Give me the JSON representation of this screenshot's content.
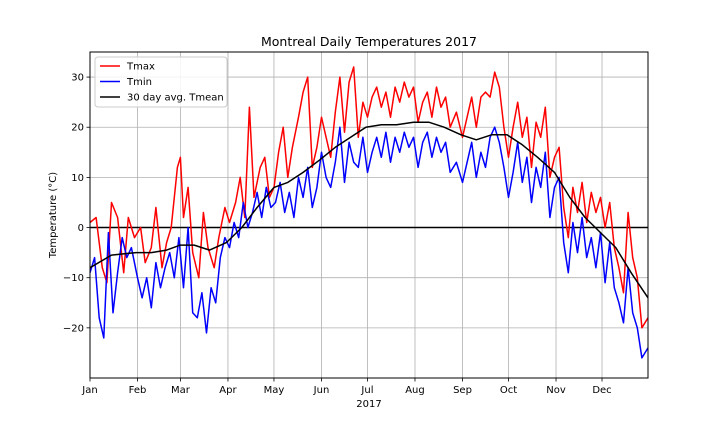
{
  "chart_data": {
    "type": "line",
    "title": "Montreal Daily Temperatures 2017",
    "xlabel": "2017",
    "ylabel": "Temperature (°C)",
    "xlim": [
      "2017-01-01",
      "2017-12-31"
    ],
    "ylim": [
      -30,
      35
    ],
    "yticks": [
      -20,
      -10,
      0,
      10,
      20,
      30
    ],
    "xticks": [
      {
        "date": "2017-01-01",
        "label": "Jan"
      },
      {
        "date": "2017-02-01",
        "label": "Feb"
      },
      {
        "date": "2017-03-01",
        "label": "Mar"
      },
      {
        "date": "2017-04-01",
        "label": "Apr"
      },
      {
        "date": "2017-05-01",
        "label": "May"
      },
      {
        "date": "2017-06-01",
        "label": "Jun"
      },
      {
        "date": "2017-07-01",
        "label": "Jul"
      },
      {
        "date": "2017-08-01",
        "label": "Aug"
      },
      {
        "date": "2017-09-01",
        "label": "Sep"
      },
      {
        "date": "2017-10-01",
        "label": "Oct"
      },
      {
        "date": "2017-11-01",
        "label": "Nov"
      },
      {
        "date": "2017-12-01",
        "label": "Dec"
      }
    ],
    "grid": true,
    "legend_position": "upper-left",
    "zero_line": {
      "y": 0,
      "color": "#000000"
    },
    "series": [
      {
        "name": "Tmax",
        "color": "#ff0000",
        "points": [
          [
            "2017-01-01",
            1
          ],
          [
            "2017-01-05",
            2
          ],
          [
            "2017-01-09",
            -8
          ],
          [
            "2017-01-12",
            -11
          ],
          [
            "2017-01-15",
            5
          ],
          [
            "2017-01-19",
            2
          ],
          [
            "2017-01-23",
            -9
          ],
          [
            "2017-01-26",
            2
          ],
          [
            "2017-01-30",
            -2
          ],
          [
            "2017-02-03",
            0
          ],
          [
            "2017-02-06",
            -7
          ],
          [
            "2017-02-10",
            -4
          ],
          [
            "2017-02-13",
            4
          ],
          [
            "2017-02-17",
            -8
          ],
          [
            "2017-02-20",
            -3
          ],
          [
            "2017-02-23",
            0
          ],
          [
            "2017-02-27",
            12
          ],
          [
            "2017-03-01",
            14
          ],
          [
            "2017-03-03",
            2
          ],
          [
            "2017-03-06",
            8
          ],
          [
            "2017-03-09",
            -5
          ],
          [
            "2017-03-13",
            -10
          ],
          [
            "2017-03-16",
            3
          ],
          [
            "2017-03-19",
            -4
          ],
          [
            "2017-03-23",
            -8
          ],
          [
            "2017-03-26",
            -2
          ],
          [
            "2017-03-30",
            4
          ],
          [
            "2017-04-02",
            1
          ],
          [
            "2017-04-06",
            5
          ],
          [
            "2017-04-09",
            10
          ],
          [
            "2017-04-12",
            2
          ],
          [
            "2017-04-15",
            24
          ],
          [
            "2017-04-18",
            6
          ],
          [
            "2017-04-22",
            12
          ],
          [
            "2017-04-25",
            14
          ],
          [
            "2017-04-28",
            6
          ],
          [
            "2017-05-01",
            8
          ],
          [
            "2017-05-04",
            15
          ],
          [
            "2017-05-07",
            20
          ],
          [
            "2017-05-10",
            10
          ],
          [
            "2017-05-13",
            16
          ],
          [
            "2017-05-17",
            22
          ],
          [
            "2017-05-20",
            27
          ],
          [
            "2017-05-23",
            30
          ],
          [
            "2017-05-26",
            12
          ],
          [
            "2017-05-29",
            16
          ],
          [
            "2017-06-01",
            22
          ],
          [
            "2017-06-04",
            18
          ],
          [
            "2017-06-07",
            14
          ],
          [
            "2017-06-10",
            23
          ],
          [
            "2017-06-13",
            30
          ],
          [
            "2017-06-16",
            19
          ],
          [
            "2017-06-19",
            29
          ],
          [
            "2017-06-22",
            32
          ],
          [
            "2017-06-25",
            18
          ],
          [
            "2017-06-28",
            25
          ],
          [
            "2017-07-01",
            22
          ],
          [
            "2017-07-04",
            26
          ],
          [
            "2017-07-07",
            28
          ],
          [
            "2017-07-10",
            24
          ],
          [
            "2017-07-13",
            27
          ],
          [
            "2017-07-16",
            22
          ],
          [
            "2017-07-19",
            28
          ],
          [
            "2017-07-22",
            25
          ],
          [
            "2017-07-25",
            29
          ],
          [
            "2017-07-28",
            26
          ],
          [
            "2017-07-31",
            28
          ],
          [
            "2017-08-03",
            21
          ],
          [
            "2017-08-06",
            25
          ],
          [
            "2017-08-09",
            27
          ],
          [
            "2017-08-12",
            22
          ],
          [
            "2017-08-15",
            28
          ],
          [
            "2017-08-18",
            24
          ],
          [
            "2017-08-21",
            26
          ],
          [
            "2017-08-24",
            20
          ],
          [
            "2017-08-28",
            23
          ],
          [
            "2017-09-01",
            18
          ],
          [
            "2017-09-04",
            22
          ],
          [
            "2017-09-07",
            26
          ],
          [
            "2017-09-10",
            20
          ],
          [
            "2017-09-13",
            26
          ],
          [
            "2017-09-16",
            27
          ],
          [
            "2017-09-19",
            26
          ],
          [
            "2017-09-22",
            31
          ],
          [
            "2017-09-25",
            28
          ],
          [
            "2017-09-28",
            20
          ],
          [
            "2017-10-01",
            14
          ],
          [
            "2017-10-04",
            20
          ],
          [
            "2017-10-07",
            25
          ],
          [
            "2017-10-10",
            18
          ],
          [
            "2017-10-13",
            22
          ],
          [
            "2017-10-16",
            12
          ],
          [
            "2017-10-19",
            21
          ],
          [
            "2017-10-22",
            18
          ],
          [
            "2017-10-25",
            24
          ],
          [
            "2017-10-28",
            10
          ],
          [
            "2017-10-31",
            14
          ],
          [
            "2017-11-03",
            16
          ],
          [
            "2017-11-06",
            4
          ],
          [
            "2017-11-09",
            -2
          ],
          [
            "2017-11-12",
            8
          ],
          [
            "2017-11-15",
            3
          ],
          [
            "2017-11-18",
            9
          ],
          [
            "2017-11-21",
            1
          ],
          [
            "2017-11-24",
            7
          ],
          [
            "2017-11-27",
            3
          ],
          [
            "2017-11-30",
            6
          ],
          [
            "2017-12-03",
            0
          ],
          [
            "2017-12-06",
            5
          ],
          [
            "2017-12-09",
            -4
          ],
          [
            "2017-12-12",
            -8
          ],
          [
            "2017-12-15",
            -13
          ],
          [
            "2017-12-18",
            3
          ],
          [
            "2017-12-21",
            -6
          ],
          [
            "2017-12-24",
            -10
          ],
          [
            "2017-12-27",
            -20
          ],
          [
            "2017-12-31",
            -18
          ]
        ]
      },
      {
        "name": "Tmin",
        "color": "#0000ff",
        "points": [
          [
            "2017-01-01",
            -9
          ],
          [
            "2017-01-04",
            -6
          ],
          [
            "2017-01-07",
            -18
          ],
          [
            "2017-01-10",
            -22
          ],
          [
            "2017-01-13",
            -1
          ],
          [
            "2017-01-16",
            -17
          ],
          [
            "2017-01-19",
            -9
          ],
          [
            "2017-01-22",
            -2
          ],
          [
            "2017-01-25",
            -6
          ],
          [
            "2017-01-28",
            -4
          ],
          [
            "2017-02-01",
            -10
          ],
          [
            "2017-02-04",
            -14
          ],
          [
            "2017-02-07",
            -10
          ],
          [
            "2017-02-10",
            -16
          ],
          [
            "2017-02-13",
            -7
          ],
          [
            "2017-02-16",
            -12
          ],
          [
            "2017-02-19",
            -8
          ],
          [
            "2017-02-22",
            -5
          ],
          [
            "2017-02-25",
            -10
          ],
          [
            "2017-02-28",
            -2
          ],
          [
            "2017-03-03",
            -12
          ],
          [
            "2017-03-06",
            0
          ],
          [
            "2017-03-09",
            -17
          ],
          [
            "2017-03-12",
            -18
          ],
          [
            "2017-03-15",
            -13
          ],
          [
            "2017-03-18",
            -21
          ],
          [
            "2017-03-21",
            -12
          ],
          [
            "2017-03-24",
            -15
          ],
          [
            "2017-03-27",
            -6
          ],
          [
            "2017-03-30",
            -2
          ],
          [
            "2017-04-02",
            -4
          ],
          [
            "2017-04-05",
            1
          ],
          [
            "2017-04-08",
            -2
          ],
          [
            "2017-04-11",
            5
          ],
          [
            "2017-04-14",
            0
          ],
          [
            "2017-04-17",
            3
          ],
          [
            "2017-04-20",
            7
          ],
          [
            "2017-04-23",
            2
          ],
          [
            "2017-04-26",
            8
          ],
          [
            "2017-04-29",
            4
          ],
          [
            "2017-05-02",
            5
          ],
          [
            "2017-05-05",
            9
          ],
          [
            "2017-05-08",
            3
          ],
          [
            "2017-05-11",
            7
          ],
          [
            "2017-05-14",
            2
          ],
          [
            "2017-05-17",
            10
          ],
          [
            "2017-05-20",
            6
          ],
          [
            "2017-05-23",
            12
          ],
          [
            "2017-05-26",
            4
          ],
          [
            "2017-05-29",
            8
          ],
          [
            "2017-06-01",
            15
          ],
          [
            "2017-06-04",
            10
          ],
          [
            "2017-06-07",
            8
          ],
          [
            "2017-06-10",
            13
          ],
          [
            "2017-06-13",
            20
          ],
          [
            "2017-06-16",
            9
          ],
          [
            "2017-06-19",
            17
          ],
          [
            "2017-06-22",
            13
          ],
          [
            "2017-06-25",
            12
          ],
          [
            "2017-06-28",
            18
          ],
          [
            "2017-07-01",
            11
          ],
          [
            "2017-07-04",
            15
          ],
          [
            "2017-07-07",
            18
          ],
          [
            "2017-07-10",
            14
          ],
          [
            "2017-07-13",
            19
          ],
          [
            "2017-07-16",
            13
          ],
          [
            "2017-07-19",
            18
          ],
          [
            "2017-07-22",
            15
          ],
          [
            "2017-07-25",
            19
          ],
          [
            "2017-07-28",
            16
          ],
          [
            "2017-07-31",
            18
          ],
          [
            "2017-08-03",
            12
          ],
          [
            "2017-08-06",
            17
          ],
          [
            "2017-08-09",
            19
          ],
          [
            "2017-08-12",
            14
          ],
          [
            "2017-08-15",
            18
          ],
          [
            "2017-08-18",
            15
          ],
          [
            "2017-08-21",
            17
          ],
          [
            "2017-08-24",
            11
          ],
          [
            "2017-08-28",
            13
          ],
          [
            "2017-09-01",
            9
          ],
          [
            "2017-09-04",
            13
          ],
          [
            "2017-09-07",
            17
          ],
          [
            "2017-09-10",
            10
          ],
          [
            "2017-09-13",
            15
          ],
          [
            "2017-09-16",
            12
          ],
          [
            "2017-09-19",
            18
          ],
          [
            "2017-09-22",
            20
          ],
          [
            "2017-09-25",
            17
          ],
          [
            "2017-09-28",
            12
          ],
          [
            "2017-10-01",
            6
          ],
          [
            "2017-10-04",
            11
          ],
          [
            "2017-10-07",
            17
          ],
          [
            "2017-10-10",
            9
          ],
          [
            "2017-10-13",
            14
          ],
          [
            "2017-10-16",
            5
          ],
          [
            "2017-10-19",
            12
          ],
          [
            "2017-10-22",
            8
          ],
          [
            "2017-10-25",
            15
          ],
          [
            "2017-10-28",
            2
          ],
          [
            "2017-10-31",
            8
          ],
          [
            "2017-11-03",
            10
          ],
          [
            "2017-11-06",
            -3
          ],
          [
            "2017-11-09",
            -9
          ],
          [
            "2017-11-12",
            1
          ],
          [
            "2017-11-15",
            -5
          ],
          [
            "2017-11-18",
            2
          ],
          [
            "2017-11-21",
            -6
          ],
          [
            "2017-11-24",
            -2
          ],
          [
            "2017-11-27",
            -8
          ],
          [
            "2017-11-30",
            -1
          ],
          [
            "2017-12-03",
            -11
          ],
          [
            "2017-12-06",
            -3
          ],
          [
            "2017-12-09",
            -12
          ],
          [
            "2017-12-12",
            -15
          ],
          [
            "2017-12-15",
            -19
          ],
          [
            "2017-12-18",
            -8
          ],
          [
            "2017-12-21",
            -17
          ],
          [
            "2017-12-24",
            -20
          ],
          [
            "2017-12-27",
            -26
          ],
          [
            "2017-12-31",
            -24
          ]
        ]
      },
      {
        "name": "30 day avg. Tmean",
        "color": "#000000",
        "points": [
          [
            "2017-01-01",
            -8
          ],
          [
            "2017-01-15",
            -5.5
          ],
          [
            "2017-01-31",
            -5
          ],
          [
            "2017-02-10",
            -5
          ],
          [
            "2017-02-20",
            -4.5
          ],
          [
            "2017-03-01",
            -3.5
          ],
          [
            "2017-03-10",
            -3.5
          ],
          [
            "2017-03-20",
            -4.5
          ],
          [
            "2017-03-31",
            -3
          ],
          [
            "2017-04-10",
            0
          ],
          [
            "2017-04-20",
            4
          ],
          [
            "2017-05-01",
            8
          ],
          [
            "2017-05-10",
            9
          ],
          [
            "2017-05-20",
            11
          ],
          [
            "2017-05-31",
            13.5
          ],
          [
            "2017-06-10",
            16
          ],
          [
            "2017-06-20",
            18
          ],
          [
            "2017-06-30",
            20
          ],
          [
            "2017-07-10",
            20.5
          ],
          [
            "2017-07-20",
            20.5
          ],
          [
            "2017-07-31",
            21
          ],
          [
            "2017-08-10",
            21
          ],
          [
            "2017-08-20",
            20
          ],
          [
            "2017-08-31",
            18.5
          ],
          [
            "2017-09-10",
            17.5
          ],
          [
            "2017-09-20",
            18.5
          ],
          [
            "2017-09-30",
            18.5
          ],
          [
            "2017-10-10",
            16.5
          ],
          [
            "2017-10-20",
            14
          ],
          [
            "2017-10-31",
            11
          ],
          [
            "2017-11-10",
            6
          ],
          [
            "2017-11-20",
            2
          ],
          [
            "2017-11-30",
            -1
          ],
          [
            "2017-12-10",
            -4
          ],
          [
            "2017-12-20",
            -9
          ],
          [
            "2017-12-31",
            -14
          ]
        ]
      }
    ]
  }
}
